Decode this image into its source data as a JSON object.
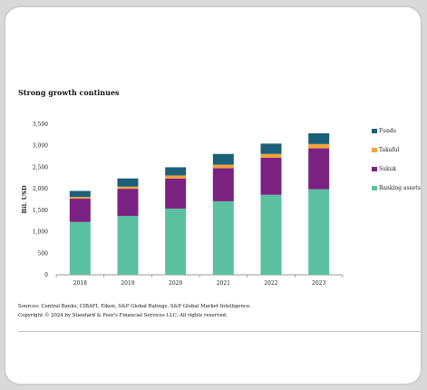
{
  "chart_data": {
    "type": "bar",
    "stacked": true,
    "title": "Strong growth continues",
    "xlabel": "",
    "ylabel": "Bil. USD",
    "categories": [
      "2018",
      "2019",
      "2020",
      "2021",
      "2022",
      "2023"
    ],
    "ylim": [
      0,
      3500
    ],
    "yticks": [
      0,
      500,
      1000,
      1500,
      2000,
      2500,
      3000,
      3500
    ],
    "ytick_labels": [
      "0",
      "500",
      "1,000",
      "1,500",
      "2,000",
      "2,500",
      "3,000",
      "3,500"
    ],
    "grid": false,
    "legend_position": "right",
    "series": [
      {
        "name": "Banking assets",
        "color": "#5bc0a0",
        "values": [
          1230,
          1370,
          1540,
          1710,
          1860,
          1990
        ]
      },
      {
        "name": "Sukuk",
        "color": "#7b2182",
        "values": [
          540,
          630,
          700,
          770,
          860,
          950
        ]
      },
      {
        "name": "Takaful",
        "color": "#f2a33a",
        "values": [
          40,
          50,
          70,
          80,
          90,
          100
        ]
      },
      {
        "name": "Funds",
        "color": "#1c5f79",
        "values": [
          140,
          190,
          190,
          250,
          240,
          250
        ]
      }
    ],
    "legend_order": [
      "Funds",
      "Takaful",
      "Sukuk",
      "Banking assets"
    ]
  },
  "footer": {
    "sources": "Sources: Central Banks, CIBAFI, Eikon, S&P Global Ratings, S&P Global Market Intelligence.",
    "copyright": "Copyright © 2024 by Standard & Poor's Financial Services LLC. All rights reserved."
  }
}
